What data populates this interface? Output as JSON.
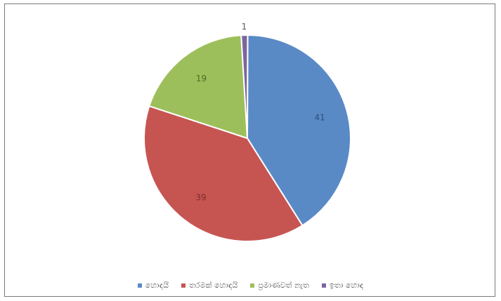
{
  "chart_data": {
    "type": "pie",
    "series": [
      {
        "label": "හොඳයි",
        "value": 41,
        "color": "#5a8ac6"
      },
      {
        "label": "තරමක් හොඳයි",
        "value": 39,
        "color": "#c65552"
      },
      {
        "label": "ප්‍රමාණවත් නැත",
        "value": 19,
        "color": "#9dbf5b"
      },
      {
        "label": "ඉතා හොඳ",
        "value": 1,
        "color": "#7b66a0"
      }
    ],
    "legend": "bottom"
  }
}
